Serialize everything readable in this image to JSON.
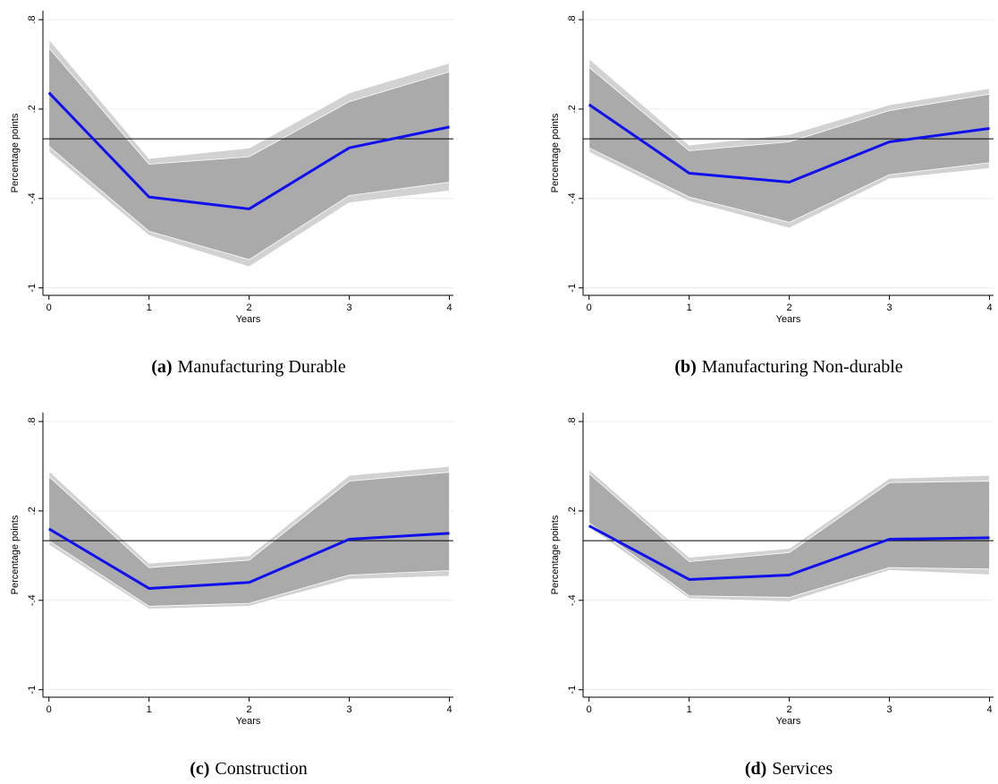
{
  "chart_data": [
    {
      "type": "line",
      "label": "(a)",
      "caption": "Manufacturing Durable",
      "xlabel": "Years",
      "ylabel": "Percentage points",
      "x": [
        0,
        1,
        2,
        3,
        4
      ],
      "xticks": [
        0,
        1,
        2,
        3,
        4
      ],
      "xlim": [
        -0.06,
        4.04
      ],
      "ylim": [
        -1.05,
        0.86
      ],
      "yticks": [
        {
          "value": -1,
          "label": "-1"
        },
        {
          "value": -0.4,
          "label": "-.4"
        },
        {
          "value": 0.2,
          "label": ".2"
        },
        {
          "value": 0.8,
          "label": ".8"
        }
      ],
      "grid": true,
      "hline": 0,
      "bands": [
        {
          "color": "#d2d2d2",
          "upper": [
            0.67,
            -0.13,
            -0.06,
            0.31,
            0.51
          ],
          "lower": [
            -0.09,
            -0.65,
            -0.86,
            -0.43,
            -0.35
          ]
        },
        {
          "color": "#aaaaaa",
          "upper": [
            0.61,
            -0.17,
            -0.12,
            0.25,
            0.45
          ],
          "lower": [
            -0.05,
            -0.62,
            -0.81,
            -0.38,
            -0.29
          ]
        }
      ],
      "series": [
        {
          "color": "#1010ee",
          "values": [
            0.31,
            -0.39,
            -0.47,
            -0.06,
            0.08
          ]
        }
      ]
    },
    {
      "type": "line",
      "label": "(b)",
      "caption": "Manufacturing Non-durable",
      "xlabel": "Years",
      "ylabel": "Percentage points",
      "x": [
        0,
        1,
        2,
        3,
        4
      ],
      "xticks": [
        0,
        1,
        2,
        3,
        4
      ],
      "xlim": [
        -0.06,
        4.04
      ],
      "ylim": [
        -1.05,
        0.86
      ],
      "yticks": [
        {
          "value": -1,
          "label": "-1"
        },
        {
          "value": -0.4,
          "label": "-.4"
        },
        {
          "value": 0.2,
          "label": ".2"
        },
        {
          "value": 0.8,
          "label": ".8"
        }
      ],
      "grid": true,
      "hline": 0,
      "bands": [
        {
          "color": "#d2d2d2",
          "upper": [
            0.54,
            -0.04,
            0.03,
            0.23,
            0.34
          ],
          "lower": [
            -0.09,
            -0.42,
            -0.6,
            -0.27,
            -0.2
          ]
        },
        {
          "color": "#aaaaaa",
          "upper": [
            0.48,
            -0.08,
            -0.02,
            0.19,
            0.3
          ],
          "lower": [
            -0.06,
            -0.39,
            -0.56,
            -0.24,
            -0.16
          ]
        }
      ],
      "series": [
        {
          "color": "#1010ee",
          "values": [
            0.23,
            -0.23,
            -0.29,
            -0.02,
            0.07
          ]
        }
      ]
    },
    {
      "type": "line",
      "label": "(c)",
      "caption": "Construction",
      "xlabel": "Years",
      "ylabel": "Percentage points",
      "x": [
        0,
        1,
        2,
        3,
        4
      ],
      "xticks": [
        0,
        1,
        2,
        3,
        4
      ],
      "xlim": [
        -0.06,
        4.04
      ],
      "ylim": [
        -1.05,
        0.86
      ],
      "yticks": [
        {
          "value": -1,
          "label": "-1"
        },
        {
          "value": -0.4,
          "label": "-.4"
        },
        {
          "value": 0.2,
          "label": ".2"
        },
        {
          "value": 0.8,
          "label": ".8"
        }
      ],
      "grid": true,
      "hline": 0,
      "bands": [
        {
          "color": "#d2d2d2",
          "upper": [
            0.47,
            -0.15,
            -0.1,
            0.44,
            0.5
          ],
          "lower": [
            -0.03,
            -0.46,
            -0.44,
            -0.26,
            -0.24
          ]
        },
        {
          "color": "#aaaaaa",
          "upper": [
            0.43,
            -0.18,
            -0.13,
            0.4,
            0.46
          ],
          "lower": [
            0.0,
            -0.44,
            -0.42,
            -0.23,
            -0.2
          ]
        }
      ],
      "series": [
        {
          "color": "#1010ee",
          "values": [
            0.08,
            -0.32,
            -0.28,
            0.01,
            0.05
          ]
        }
      ]
    },
    {
      "type": "line",
      "label": "(d)",
      "caption": "Services",
      "xlabel": "Years",
      "ylabel": "Percentage points",
      "x": [
        0,
        1,
        2,
        3,
        4
      ],
      "xticks": [
        0,
        1,
        2,
        3,
        4
      ],
      "xlim": [
        -0.06,
        4.04
      ],
      "ylim": [
        -1.05,
        0.86
      ],
      "yticks": [
        {
          "value": -1,
          "label": "-1"
        },
        {
          "value": -0.4,
          "label": "-.4"
        },
        {
          "value": 0.2,
          "label": ".2"
        },
        {
          "value": 0.8,
          "label": ".8"
        }
      ],
      "grid": true,
      "hline": 0,
      "bands": [
        {
          "color": "#d2d2d2",
          "upper": [
            0.48,
            -0.11,
            -0.05,
            0.42,
            0.44
          ],
          "lower": [
            0.09,
            -0.39,
            -0.41,
            -0.2,
            -0.23
          ]
        },
        {
          "color": "#aaaaaa",
          "upper": [
            0.45,
            -0.14,
            -0.08,
            0.39,
            0.4
          ],
          "lower": [
            0.12,
            -0.37,
            -0.38,
            -0.18,
            -0.19
          ]
        }
      ],
      "series": [
        {
          "color": "#1010ee",
          "values": [
            0.1,
            -0.26,
            -0.23,
            0.01,
            0.02
          ]
        }
      ]
    }
  ]
}
